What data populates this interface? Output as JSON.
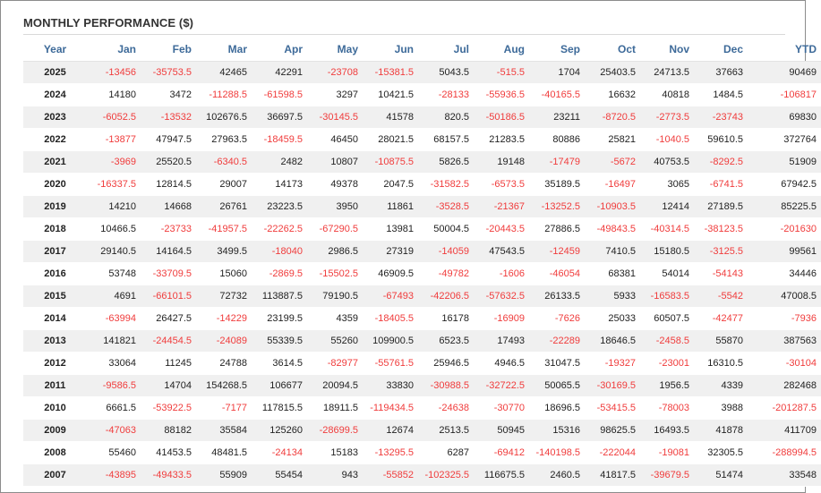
{
  "title": "MONTHLY PERFORMANCE ($)",
  "colors": {
    "header_text": "#3d6a99",
    "negative": "#f03c3c",
    "positive": "#222222",
    "row_stripe": "#f0f0f0"
  },
  "columns": [
    "Year",
    "Jan",
    "Feb",
    "Mar",
    "Apr",
    "May",
    "Jun",
    "Jul",
    "Aug",
    "Sep",
    "Oct",
    "Nov",
    "Dec",
    "YTD"
  ],
  "rows": [
    [
      "2025",
      "-13456",
      "-35753.5",
      "42465",
      "42291",
      "-23708",
      "-15381.5",
      "5043.5",
      "-515.5",
      "1704",
      "25403.5",
      "24713.5",
      "37663",
      "90469"
    ],
    [
      "2024",
      "14180",
      "3472",
      "-11288.5",
      "-61598.5",
      "3297",
      "10421.5",
      "-28133",
      "-55936.5",
      "-40165.5",
      "16632",
      "40818",
      "1484.5",
      "-106817"
    ],
    [
      "2023",
      "-6052.5",
      "-13532",
      "102676.5",
      "36697.5",
      "-30145.5",
      "41578",
      "820.5",
      "-50186.5",
      "23211",
      "-8720.5",
      "-2773.5",
      "-23743",
      "69830"
    ],
    [
      "2022",
      "-13877",
      "47947.5",
      "27963.5",
      "-18459.5",
      "46450",
      "28021.5",
      "68157.5",
      "21283.5",
      "80886",
      "25821",
      "-1040.5",
      "59610.5",
      "372764"
    ],
    [
      "2021",
      "-3969",
      "25520.5",
      "-6340.5",
      "2482",
      "10807",
      "-10875.5",
      "5826.5",
      "19148",
      "-17479",
      "-5672",
      "40753.5",
      "-8292.5",
      "51909"
    ],
    [
      "2020",
      "-16337.5",
      "12814.5",
      "29007",
      "14173",
      "49378",
      "2047.5",
      "-31582.5",
      "-6573.5",
      "35189.5",
      "-16497",
      "3065",
      "-6741.5",
      "67942.5"
    ],
    [
      "2019",
      "14210",
      "14668",
      "26761",
      "23223.5",
      "3950",
      "11861",
      "-3528.5",
      "-21367",
      "-13252.5",
      "-10903.5",
      "12414",
      "27189.5",
      "85225.5"
    ],
    [
      "2018",
      "10466.5",
      "-23733",
      "-41957.5",
      "-22262.5",
      "-67290.5",
      "13981",
      "50004.5",
      "-20443.5",
      "27886.5",
      "-49843.5",
      "-40314.5",
      "-38123.5",
      "-201630"
    ],
    [
      "2017",
      "29140.5",
      "14164.5",
      "3499.5",
      "-18040",
      "2986.5",
      "27319",
      "-14059",
      "47543.5",
      "-12459",
      "7410.5",
      "15180.5",
      "-3125.5",
      "99561"
    ],
    [
      "2016",
      "53748",
      "-33709.5",
      "15060",
      "-2869.5",
      "-15502.5",
      "46909.5",
      "-49782",
      "-1606",
      "-46054",
      "68381",
      "54014",
      "-54143",
      "34446"
    ],
    [
      "2015",
      "4691",
      "-66101.5",
      "72732",
      "113887.5",
      "79190.5",
      "-67493",
      "-42206.5",
      "-57632.5",
      "26133.5",
      "5933",
      "-16583.5",
      "-5542",
      "47008.5"
    ],
    [
      "2014",
      "-63994",
      "26427.5",
      "-14229",
      "23199.5",
      "4359",
      "-18405.5",
      "16178",
      "-16909",
      "-7626",
      "25033",
      "60507.5",
      "-42477",
      "-7936"
    ],
    [
      "2013",
      "141821",
      "-24454.5",
      "-24089",
      "55339.5",
      "55260",
      "109900.5",
      "6523.5",
      "17493",
      "-22289",
      "18646.5",
      "-2458.5",
      "55870",
      "387563"
    ],
    [
      "2012",
      "33064",
      "11245",
      "24788",
      "3614.5",
      "-82977",
      "-55761.5",
      "25946.5",
      "4946.5",
      "31047.5",
      "-19327",
      "-23001",
      "16310.5",
      "-30104"
    ],
    [
      "2011",
      "-9586.5",
      "14704",
      "154268.5",
      "106677",
      "20094.5",
      "33830",
      "-30988.5",
      "-32722.5",
      "50065.5",
      "-30169.5",
      "1956.5",
      "4339",
      "282468"
    ],
    [
      "2010",
      "6661.5",
      "-53922.5",
      "-7177",
      "117815.5",
      "18911.5",
      "-119434.5",
      "-24638",
      "-30770",
      "18696.5",
      "-53415.5",
      "-78003",
      "3988",
      "-201287.5"
    ],
    [
      "2009",
      "-47063",
      "88182",
      "35584",
      "125260",
      "-28699.5",
      "12674",
      "2513.5",
      "50945",
      "15316",
      "98625.5",
      "16493.5",
      "41878",
      "411709"
    ],
    [
      "2008",
      "55460",
      "41453.5",
      "48481.5",
      "-24134",
      "15183",
      "-13295.5",
      "6287",
      "-69412",
      "-140198.5",
      "-222044",
      "-19081",
      "32305.5",
      "-288994.5"
    ],
    [
      "2007",
      "-43895",
      "-49433.5",
      "55909",
      "55454",
      "943",
      "-55852",
      "-102325.5",
      "116675.5",
      "2460.5",
      "41817.5",
      "-39679.5",
      "51474",
      "33548"
    ]
  ]
}
